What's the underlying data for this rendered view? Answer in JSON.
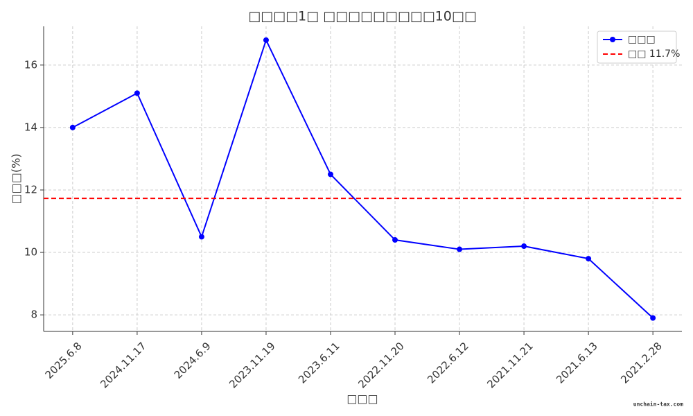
{
  "chart_data": {
    "type": "line",
    "title": "□□□□1□ □□□□□□□□□10□□",
    "x_label": "□□□",
    "y_label": "□□□(%)",
    "categories": [
      "2025.6.8",
      "2024.11.17",
      "2024.6.9",
      "2023.11.19",
      "2023.6.11",
      "2022.11.20",
      "2022.6.12",
      "2021.11.21",
      "2021.6.13",
      "2021.2.28"
    ],
    "series": [
      {
        "name": "□□□",
        "color": "#0000ff",
        "values": [
          14.0,
          15.1,
          10.5,
          16.8,
          12.5,
          10.4,
          10.1,
          10.2,
          9.8,
          7.9
        ]
      }
    ],
    "mean_line": {
      "value": 11.73,
      "label": "□□ 11.7%",
      "color": "#ff0000"
    },
    "ylim": [
      7.47,
      17.24
    ],
    "yticks": [
      8,
      10,
      12,
      14,
      16
    ],
    "grid": true,
    "legend": "upper right",
    "watermark": "unchain-tax.com"
  }
}
